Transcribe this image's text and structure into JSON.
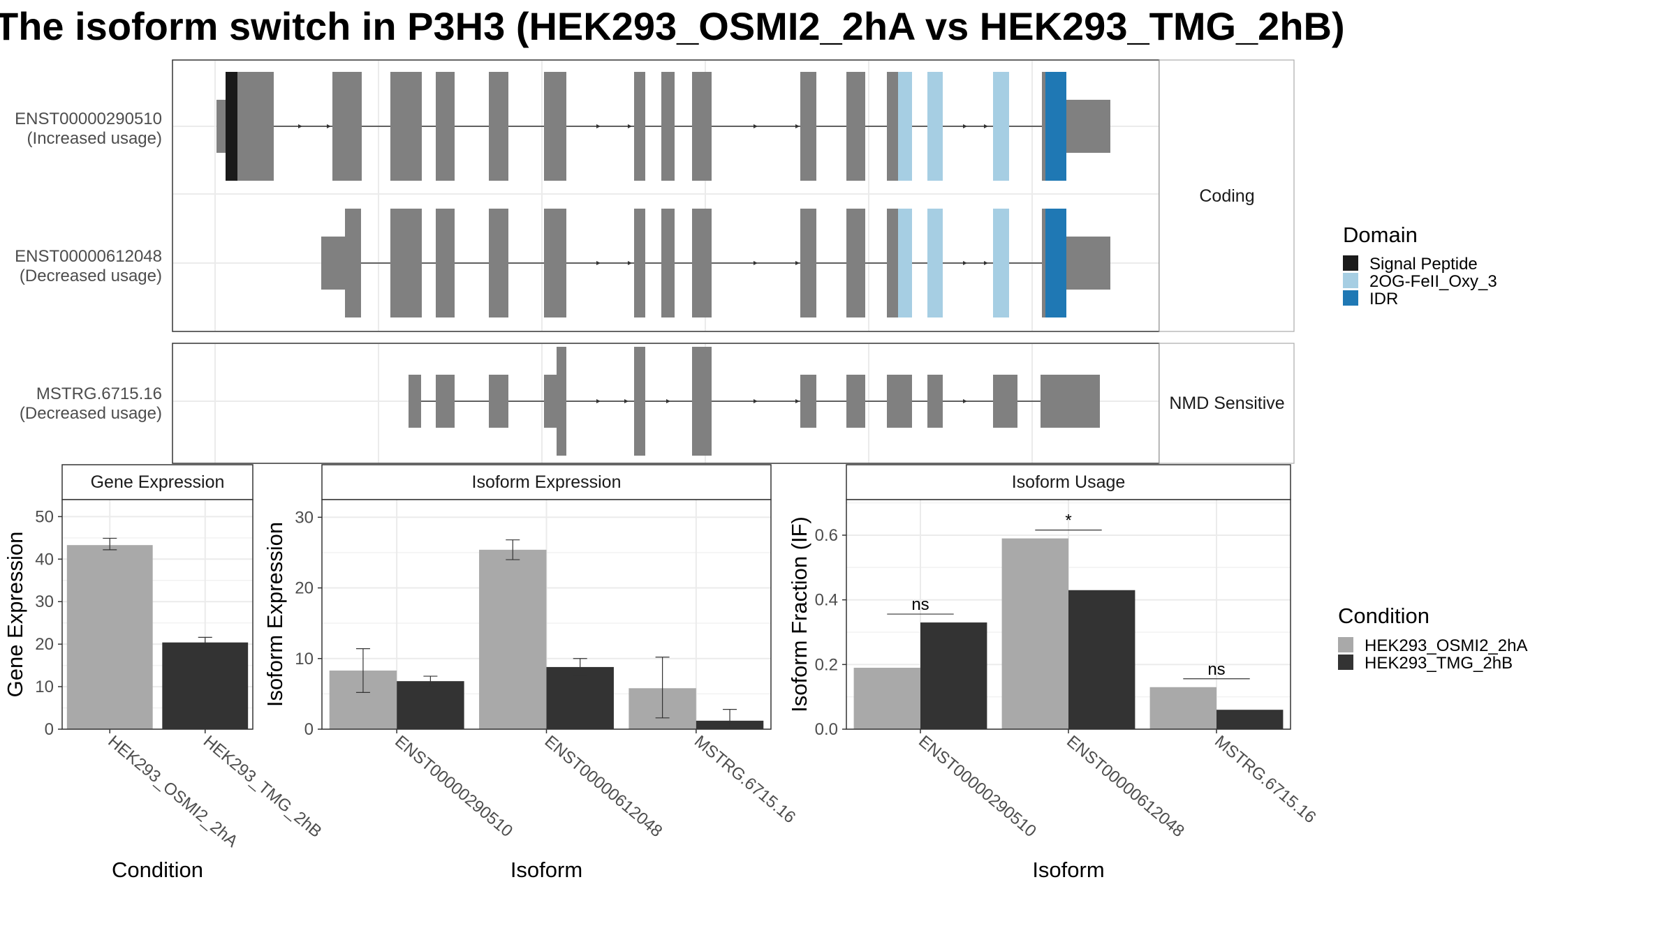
{
  "title": "The isoform switch in P3H3 (HEK293_OSMI2_2hA vs HEK293_TMG_2hB)",
  "colors": {
    "exon": "#808080",
    "signal_peptide": "#1a1a1a",
    "oxy": "#a6cee3",
    "idr": "#1f78b4",
    "condA": "#a9a9a9",
    "condB": "#333333",
    "grid": "#ebebeb",
    "strip": "#ffffff"
  },
  "transcripts": {
    "coding_label": "Coding",
    "nmd_label": "NMD Sensitive",
    "rows": [
      {
        "id": "ENST00000290510",
        "usage": "(Increased usage)"
      },
      {
        "id": "ENST00000612048",
        "usage": "(Decreased usage)"
      },
      {
        "id": "MSTRG.6715.16",
        "usage": "(Decreased usage)"
      }
    ]
  },
  "legend_domain": {
    "title": "Domain",
    "items": [
      {
        "label": "Signal Peptide",
        "color": "#1a1a1a"
      },
      {
        "label": "2OG-FeII_Oxy_3",
        "color": "#a6cee3"
      },
      {
        "label": "IDR",
        "color": "#1f78b4"
      }
    ]
  },
  "legend_condition": {
    "title": "Condition",
    "items": [
      {
        "label": "HEK293_OSMI2_2hA",
        "color": "#a9a9a9"
      },
      {
        "label": "HEK293_TMG_2hB",
        "color": "#333333"
      }
    ]
  },
  "chart_data": [
    {
      "type": "bar",
      "title": "Gene Expression",
      "xlabel": "Condition",
      "ylabel": "Gene Expression",
      "ylim": [
        0,
        54
      ],
      "yticks": [
        0,
        10,
        20,
        30,
        40,
        50
      ],
      "categories": [
        "HEK293_OSMI2_2hA",
        "HEK293_TMG_2hB"
      ],
      "values": [
        43.3,
        20.4
      ],
      "errors": [
        [
          42.2,
          44.9
        ],
        [
          19.2,
          21.6
        ]
      ]
    },
    {
      "type": "bar",
      "title": "Isoform Expression",
      "xlabel": "Isoform",
      "ylabel": "Isoform Expression",
      "ylim": [
        0,
        32.5
      ],
      "yticks": [
        0,
        10,
        20,
        30
      ],
      "categories": [
        "ENST00000290510",
        "ENST00000612048",
        "MSTRG.6715.16"
      ],
      "series": [
        {
          "name": "HEK293_OSMI2_2hA",
          "values": [
            8.3,
            25.4,
            5.8
          ],
          "errors": [
            [
              5.2,
              11.4
            ],
            [
              24.0,
              26.8
            ],
            [
              1.6,
              10.2
            ]
          ]
        },
        {
          "name": "HEK293_TMG_2hB",
          "values": [
            6.8,
            8.8,
            1.2
          ],
          "errors": [
            [
              6.0,
              7.5
            ],
            [
              7.6,
              10.0
            ],
            [
              0.2,
              2.8
            ]
          ]
        }
      ]
    },
    {
      "type": "bar",
      "title": "Isoform Usage",
      "xlabel": "Isoform",
      "ylabel": "Isoform Fraction (IF)",
      "ylim": [
        0,
        0.71
      ],
      "yticks": [
        "0.0",
        "0.2",
        "0.4",
        "0.6"
      ],
      "categories": [
        "ENST00000290510",
        "ENST00000612048",
        "MSTRG.6715.16"
      ],
      "series": [
        {
          "name": "HEK293_OSMI2_2hA",
          "values": [
            0.19,
            0.59,
            0.13
          ]
        },
        {
          "name": "HEK293_TMG_2hB",
          "values": [
            0.33,
            0.43,
            0.06
          ]
        }
      ],
      "significance": [
        "ns",
        "*",
        "ns"
      ]
    }
  ]
}
